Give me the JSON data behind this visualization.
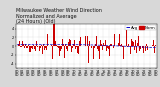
{
  "title": "Milwaukee Weather Wind Direction\nNormalized and Average\n(24 Hours) (Old)",
  "background_color": "#d8d8d8",
  "plot_bg_color": "#ffffff",
  "grid_color": "#aaaaaa",
  "bar_color": "#cc0000",
  "avg_line_color": "#0000cc",
  "avg_line_style": "--",
  "n_points": 144,
  "y_range": [
    -5,
    5
  ],
  "y_ticks": [
    -4,
    -2,
    0,
    2,
    4
  ],
  "legend_line_label": "Avg",
  "legend_bar_label": "Norm",
  "title_fontsize": 3.5,
  "tick_fontsize": 2.5,
  "legend_fontsize": 2.8
}
